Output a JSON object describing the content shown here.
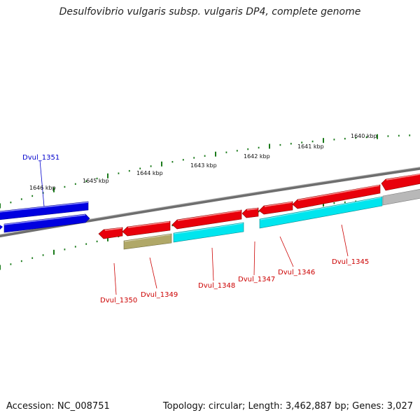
{
  "title": "Desulfovibrio vulgaris subsp. vulgaris DP4, complete genome",
  "footer": {
    "accession": "Accession: NC_008751",
    "summary": "Topology: circular; Length: 3,462,887 bp; Genes: 3,027"
  },
  "colors": {
    "forward_cds": "#e8000b",
    "highlight_cds": "#0000e0",
    "rna": "#00e5ee",
    "misc_feature": "#b0a868",
    "other": "#b8b8b8",
    "backbone": "#7a7a7a",
    "ruler": "#1a7a1a",
    "label_red": "#cc0000",
    "label_blue": "#0000cc"
  },
  "ruler": {
    "tick_labels": [
      "1646 kbp",
      "1645 kbp",
      "1644 kbp",
      "1643 kbp",
      "1642 kbp",
      "1641 kbp",
      "1640 kbp"
    ]
  },
  "genes": [
    {
      "name": "Dvul_1351",
      "color": "blue"
    },
    {
      "name": "Dvul_1350",
      "color": "red"
    },
    {
      "name": "Dvul_1349",
      "color": "red"
    },
    {
      "name": "Dvul_1348",
      "color": "red"
    },
    {
      "name": "Dvul_1347",
      "color": "red"
    },
    {
      "name": "Dvul_1346",
      "color": "red"
    },
    {
      "name": "Dvul_1345",
      "color": "red"
    }
  ]
}
